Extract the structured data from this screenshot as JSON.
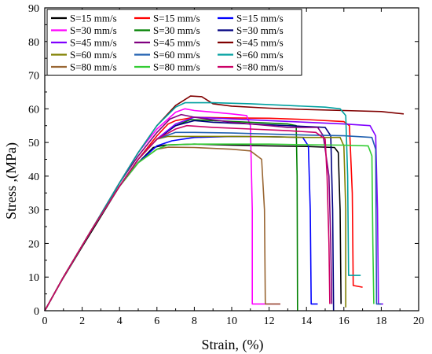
{
  "chart_data": {
    "type": "line",
    "xlabel": "Strain, (%)",
    "ylabel": "Stress ,(MPa)",
    "xlim": [
      0,
      20
    ],
    "ylim": [
      0,
      90
    ],
    "x_ticks": [
      "0",
      "2",
      "4",
      "6",
      "8",
      "10",
      "12",
      "14",
      "16",
      "18",
      "20"
    ],
    "y_ticks": [
      "0",
      "10",
      "20",
      "30",
      "40",
      "50",
      "60",
      "70",
      "80",
      "90"
    ],
    "grid": false,
    "legend_position": "top-left",
    "series": [
      {
        "name": "S=15 mm/s",
        "color": "#000000",
        "points": [
          [
            0,
            0
          ],
          [
            0.8,
            8
          ],
          [
            2,
            19
          ],
          [
            3,
            28
          ],
          [
            4,
            37
          ],
          [
            5,
            44
          ],
          [
            5.8,
            48.5
          ],
          [
            6.4,
            49.2
          ],
          [
            8,
            49.5
          ],
          [
            10,
            49.2
          ],
          [
            12,
            49
          ],
          [
            14,
            48.8
          ],
          [
            15.5,
            48.5
          ],
          [
            15.7,
            47
          ],
          [
            15.8,
            30
          ],
          [
            15.85,
            2
          ]
        ]
      },
      {
        "name": "S=15 mm/s",
        "color": "#ff0000",
        "points": [
          [
            0,
            0
          ],
          [
            1,
            10
          ],
          [
            2.5,
            24
          ],
          [
            4,
            37
          ],
          [
            5,
            45
          ],
          [
            6,
            52
          ],
          [
            6.6,
            55.5
          ],
          [
            7,
            56.5
          ],
          [
            8,
            57.5
          ],
          [
            10,
            57.3
          ],
          [
            12,
            57.2
          ],
          [
            14,
            56.8
          ],
          [
            16,
            56.2
          ],
          [
            16.3,
            55
          ],
          [
            16.45,
            35
          ],
          [
            16.5,
            7.5
          ],
          [
            17,
            7
          ]
        ]
      },
      {
        "name": "S=15 mm/s",
        "color": "#0000ff",
        "points": [
          [
            0,
            0
          ],
          [
            1,
            10
          ],
          [
            2.5,
            24
          ],
          [
            4,
            37
          ],
          [
            5,
            44
          ],
          [
            6,
            49
          ],
          [
            6.8,
            50.5
          ],
          [
            8,
            51.5
          ],
          [
            10,
            51.8
          ],
          [
            12,
            51.7
          ],
          [
            13.8,
            51.5
          ],
          [
            14.1,
            49
          ],
          [
            14.2,
            30
          ],
          [
            14.25,
            2
          ],
          [
            14.6,
            2
          ]
        ]
      },
      {
        "name": "S=30 mm/s",
        "color": "#ff00ff",
        "points": [
          [
            0,
            0
          ],
          [
            1,
            10
          ],
          [
            2.5,
            24
          ],
          [
            4,
            38
          ],
          [
            5,
            47
          ],
          [
            6,
            54
          ],
          [
            7,
            59
          ],
          [
            7.5,
            60
          ],
          [
            8,
            59.5
          ],
          [
            9,
            59
          ],
          [
            10,
            58.5
          ],
          [
            10.8,
            58
          ],
          [
            11,
            55
          ],
          [
            11.1,
            30
          ],
          [
            11.1,
            2
          ],
          [
            12.6,
            2
          ]
        ]
      },
      {
        "name": "S=30 mm/s",
        "color": "#008000",
        "points": [
          [
            0,
            0
          ],
          [
            1,
            10
          ],
          [
            2.5,
            24
          ],
          [
            4,
            37
          ],
          [
            5,
            45
          ],
          [
            6,
            51
          ],
          [
            7,
            55
          ],
          [
            7.8,
            56.8
          ],
          [
            9,
            56.5
          ],
          [
            11,
            56
          ],
          [
            13,
            55.5
          ],
          [
            13.45,
            55
          ],
          [
            13.5,
            40
          ],
          [
            13.52,
            0
          ]
        ]
      },
      {
        "name": "S=30 mm/s",
        "color": "#000080",
        "points": [
          [
            0,
            0
          ],
          [
            1,
            10
          ],
          [
            2.5,
            24
          ],
          [
            4,
            37
          ],
          [
            5,
            45
          ],
          [
            6,
            51
          ],
          [
            7,
            55
          ],
          [
            8,
            56.5
          ],
          [
            9,
            56
          ],
          [
            11,
            55.5
          ],
          [
            13,
            55
          ],
          [
            15,
            54.5
          ],
          [
            15.3,
            52
          ],
          [
            15.4,
            30
          ],
          [
            15.45,
            0
          ]
        ]
      },
      {
        "name": "S=45 mm/s",
        "color": "#8000ff",
        "points": [
          [
            0,
            0
          ],
          [
            1,
            10
          ],
          [
            2.5,
            24
          ],
          [
            4,
            37
          ],
          [
            5,
            45
          ],
          [
            6,
            51
          ],
          [
            7,
            55.5
          ],
          [
            8,
            57.5
          ],
          [
            10,
            57
          ],
          [
            12,
            56.5
          ],
          [
            14,
            56
          ],
          [
            16,
            55.5
          ],
          [
            17.4,
            55
          ],
          [
            17.7,
            52
          ],
          [
            17.8,
            30
          ],
          [
            17.85,
            2
          ],
          [
            18.1,
            2
          ]
        ]
      },
      {
        "name": "S=45 mm/s",
        "color": "#800080",
        "points": [
          [
            0,
            0
          ],
          [
            1,
            10
          ],
          [
            2.5,
            24
          ],
          [
            4,
            38
          ],
          [
            5,
            46
          ],
          [
            6,
            53
          ],
          [
            6.7,
            57
          ],
          [
            7.3,
            58.3
          ],
          [
            8,
            57.5
          ],
          [
            10,
            56
          ],
          [
            12,
            55
          ],
          [
            13,
            54.5
          ],
          [
            14.6,
            54.5
          ],
          [
            14.9,
            52
          ],
          [
            15.2,
            40
          ],
          [
            15.3,
            20
          ],
          [
            15.35,
            2
          ]
        ]
      },
      {
        "name": "S=45 mm/s",
        "color": "#800000",
        "points": [
          [
            0,
            0
          ],
          [
            1,
            10
          ],
          [
            2.5,
            24
          ],
          [
            4,
            38
          ],
          [
            5,
            47
          ],
          [
            6,
            55
          ],
          [
            7,
            61
          ],
          [
            7.8,
            63.8
          ],
          [
            8.4,
            63.6
          ],
          [
            9,
            61.5
          ],
          [
            10,
            60.8
          ],
          [
            12,
            60.2
          ],
          [
            14,
            59.8
          ],
          [
            16,
            59.5
          ],
          [
            18,
            59.2
          ],
          [
            19.2,
            58.5
          ]
        ]
      },
      {
        "name": "S=60 mm/s",
        "color": "#808000",
        "points": [
          [
            0,
            0
          ],
          [
            1,
            10
          ],
          [
            2.5,
            24
          ],
          [
            4,
            37
          ],
          [
            5,
            45
          ],
          [
            6,
            51
          ],
          [
            6.6,
            51.8
          ],
          [
            8,
            51.8
          ],
          [
            10,
            51.8
          ],
          [
            12,
            51.7
          ],
          [
            14,
            51.5
          ],
          [
            15.8,
            51.5
          ],
          [
            16,
            49
          ],
          [
            16.1,
            30
          ],
          [
            16.1,
            1
          ]
        ]
      },
      {
        "name": "S=60 mm/s",
        "color": "#2060b0",
        "points": [
          [
            0,
            0
          ],
          [
            1,
            10
          ],
          [
            2.5,
            24
          ],
          [
            4,
            37
          ],
          [
            5,
            45
          ],
          [
            6,
            51
          ],
          [
            7,
            53
          ],
          [
            8,
            53
          ],
          [
            10,
            52.8
          ],
          [
            12,
            52.5
          ],
          [
            14,
            52.2
          ],
          [
            16,
            52
          ],
          [
            17.5,
            51.5
          ],
          [
            17.7,
            48
          ],
          [
            17.75,
            2
          ],
          [
            18,
            2
          ]
        ]
      },
      {
        "name": "S=60 mm/s",
        "color": "#00a0a0",
        "points": [
          [
            0,
            0
          ],
          [
            1,
            10
          ],
          [
            2.5,
            24
          ],
          [
            4,
            38
          ],
          [
            5,
            47
          ],
          [
            6,
            55
          ],
          [
            7,
            60.5
          ],
          [
            7.5,
            61.8
          ],
          [
            9,
            61.8
          ],
          [
            11,
            61.5
          ],
          [
            13,
            61
          ],
          [
            15,
            60.5
          ],
          [
            15.8,
            60
          ],
          [
            16.1,
            58
          ],
          [
            16.2,
            40
          ],
          [
            16.25,
            10.5
          ],
          [
            16.9,
            10.5
          ]
        ]
      },
      {
        "name": "S=80 mm/s",
        "color": "#996633",
        "points": [
          [
            0,
            0
          ],
          [
            1,
            10
          ],
          [
            2.5,
            24
          ],
          [
            4,
            37
          ],
          [
            5,
            44
          ],
          [
            6,
            48
          ],
          [
            6.6,
            48.6
          ],
          [
            8,
            48.5
          ],
          [
            10,
            48
          ],
          [
            11,
            47.5
          ],
          [
            11.6,
            45
          ],
          [
            11.75,
            30
          ],
          [
            11.8,
            2
          ],
          [
            12.6,
            2
          ]
        ]
      },
      {
        "name": "S=80 mm/s",
        "color": "#33cc33",
        "points": [
          [
            0,
            0
          ],
          [
            1,
            10
          ],
          [
            2.5,
            24
          ],
          [
            4,
            37
          ],
          [
            5,
            44
          ],
          [
            6,
            48
          ],
          [
            6.6,
            49.3
          ],
          [
            8,
            49.5
          ],
          [
            10,
            49.5
          ],
          [
            12,
            49.5
          ],
          [
            14,
            49.3
          ],
          [
            16,
            49.2
          ],
          [
            17.3,
            49
          ],
          [
            17.5,
            46
          ],
          [
            17.55,
            20
          ],
          [
            17.6,
            2
          ]
        ]
      },
      {
        "name": "S=80 mm/s",
        "color": "#cc0066",
        "points": [
          [
            0,
            0
          ],
          [
            1,
            10
          ],
          [
            2.5,
            24
          ],
          [
            4,
            37
          ],
          [
            5,
            45
          ],
          [
            6,
            51
          ],
          [
            7,
            54
          ],
          [
            7.6,
            55
          ],
          [
            9,
            54.5
          ],
          [
            11,
            54
          ],
          [
            13,
            53.5
          ],
          [
            14.5,
            53
          ],
          [
            15,
            51
          ],
          [
            15.1,
            40
          ],
          [
            15.2,
            20
          ],
          [
            15.25,
            2
          ]
        ]
      }
    ]
  }
}
